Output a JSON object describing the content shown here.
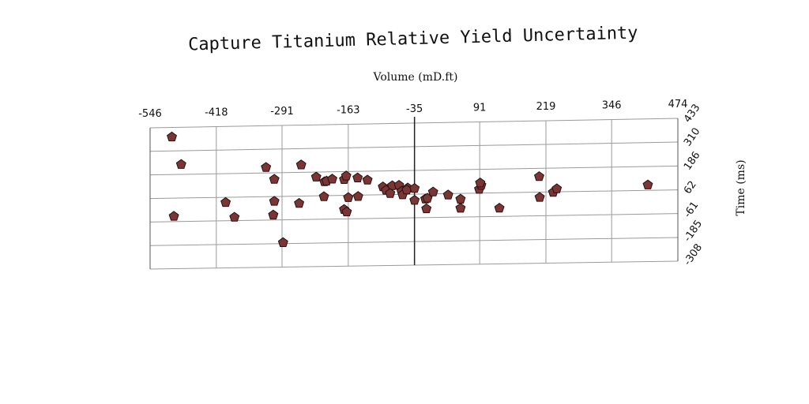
{
  "chart_data": {
    "type": "scatter",
    "title": "Capture Titanium Relative Yield Uncertainty",
    "xlabel": "Volume (mD.ft)",
    "ylabel": "Time (ms)",
    "x_ticks": [
      -546,
      -418,
      -291,
      -163,
      -35,
      91,
      219,
      346,
      474
    ],
    "y_ticks": [
      433,
      310,
      186,
      62,
      -61,
      -185,
      -308
    ],
    "xlim": [
      -546,
      474
    ],
    "ylim": [
      -308,
      433
    ],
    "x_axis_position": "top",
    "y_axis_position": "right",
    "grid": true,
    "marker": "pentagon",
    "marker_color": "#7a3535",
    "marker_edge": "#2a0f0f",
    "points": [
      {
        "x": -504,
        "y": 383
      },
      {
        "x": -486,
        "y": 238
      },
      {
        "x": -500,
        "y": -33
      },
      {
        "x": -400,
        "y": 35
      },
      {
        "x": -383,
        "y": -43
      },
      {
        "x": -322,
        "y": 215
      },
      {
        "x": -306,
        "y": 152
      },
      {
        "x": -306,
        "y": 37
      },
      {
        "x": -308,
        "y": -35
      },
      {
        "x": -289,
        "y": -180
      },
      {
        "x": -254,
        "y": 225
      },
      {
        "x": -258,
        "y": 24
      },
      {
        "x": -225,
        "y": 160
      },
      {
        "x": -209,
        "y": 135
      },
      {
        "x": -205,
        "y": 138
      },
      {
        "x": -194,
        "y": 148
      },
      {
        "x": -210,
        "y": 57
      },
      {
        "x": -171,
        "y": 145
      },
      {
        "x": -167,
        "y": 163
      },
      {
        "x": -171,
        "y": -12
      },
      {
        "x": -166,
        "y": -25
      },
      {
        "x": -163,
        "y": 50
      },
      {
        "x": -145,
        "y": 152
      },
      {
        "x": -144,
        "y": 55
      },
      {
        "x": -126,
        "y": 140
      },
      {
        "x": -96,
        "y": 103
      },
      {
        "x": -90,
        "y": 85
      },
      {
        "x": -78,
        "y": 108
      },
      {
        "x": -82,
        "y": 68
      },
      {
        "x": -65,
        "y": 110
      },
      {
        "x": -60,
        "y": 78
      },
      {
        "x": -58,
        "y": 60
      },
      {
        "x": -48,
        "y": 95
      },
      {
        "x": -50,
        "y": 85
      },
      {
        "x": -35,
        "y": 92
      },
      {
        "x": -35,
        "y": 30
      },
      {
        "x": -14,
        "y": 36
      },
      {
        "x": -10,
        "y": 40
      },
      {
        "x": -12,
        "y": -15
      },
      {
        "x": 1,
        "y": 72
      },
      {
        "x": 30,
        "y": 55
      },
      {
        "x": 54,
        "y": 32
      },
      {
        "x": 54,
        "y": -15
      },
      {
        "x": 90,
        "y": 82
      },
      {
        "x": 94,
        "y": 103
      },
      {
        "x": 92,
        "y": 115
      },
      {
        "x": 129,
        "y": -18
      },
      {
        "x": 206,
        "y": 143
      },
      {
        "x": 207,
        "y": 35
      },
      {
        "x": 233,
        "y": 60
      },
      {
        "x": 240,
        "y": 78
      },
      {
        "x": 416,
        "y": 90
      }
    ]
  }
}
